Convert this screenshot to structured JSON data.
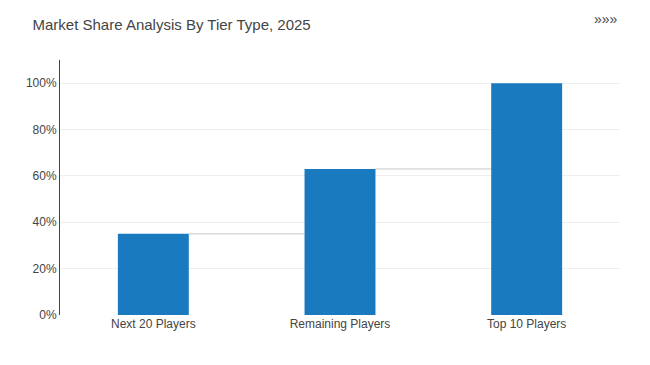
{
  "chart_data": {
    "type": "bar",
    "title": "Market Share Analysis By Tier Type, 2025",
    "categories": [
      "Next 20 Players",
      "Remaining Players",
      "Top 10 Players"
    ],
    "values": [
      35,
      63,
      100
    ],
    "color": "#1a7abf",
    "ylim": [
      0,
      110
    ],
    "yticks": [
      {
        "value": 0,
        "label": "0%"
      },
      {
        "value": 20,
        "label": "20%"
      },
      {
        "value": 40,
        "label": "40%"
      },
      {
        "value": 60,
        "label": "60%"
      },
      {
        "value": 80,
        "label": "80%"
      },
      {
        "value": 100,
        "label": "100%"
      }
    ],
    "grid": true,
    "annotations": [
      "»»»"
    ]
  }
}
